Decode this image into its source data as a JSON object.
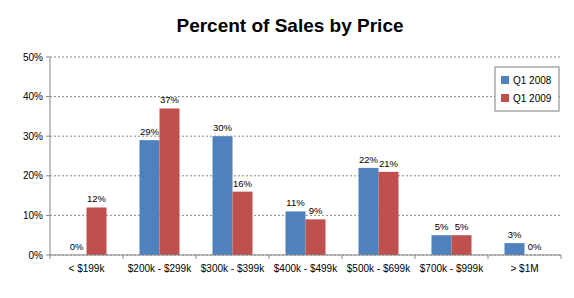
{
  "chart_data": {
    "type": "bar",
    "title": "Percent of Sales by Price",
    "categories": [
      "< $199k",
      "$200k - $299k",
      "$300k - $399k",
      "$400k - $499k",
      "$500k - $699k",
      "$700k - $999k",
      "> $1M"
    ],
    "series": [
      {
        "name": "Q1 2008",
        "color": "#4f81bd",
        "values": [
          0,
          29,
          30,
          11,
          22,
          5,
          3
        ],
        "value_labels": [
          "0%",
          "29%",
          "30%",
          "11%",
          "22%",
          "5%",
          "3%"
        ]
      },
      {
        "name": "Q1 2009",
        "color": "#c0504d",
        "values": [
          12,
          37,
          16,
          9,
          21,
          5,
          0
        ],
        "value_labels": [
          "12%",
          "37%",
          "16%",
          "9%",
          "21%",
          "5%",
          "0%"
        ]
      }
    ],
    "ylim": [
      0,
      50
    ],
    "yticks": [
      {
        "value": 0,
        "label": "0%"
      },
      {
        "value": 10,
        "label": "10%"
      },
      {
        "value": 20,
        "label": "20%"
      },
      {
        "value": 30,
        "label": "30%"
      },
      {
        "value": 40,
        "label": "40%"
      },
      {
        "value": 50,
        "label": "50%"
      }
    ],
    "grid": true,
    "legend": "top-right",
    "data_labels": true
  }
}
